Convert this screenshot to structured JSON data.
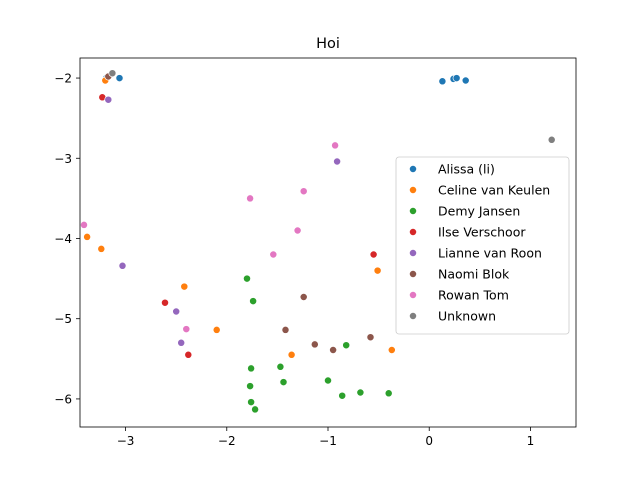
{
  "chart_data": {
    "type": "scatter",
    "title": "Hoi",
    "xlabel": "",
    "ylabel": "",
    "xlim": [
      -3.45,
      1.45
    ],
    "ylim": [
      -6.35,
      -1.75
    ],
    "xticks": [
      -3,
      -2,
      -1,
      0,
      1
    ],
    "yticks": [
      -2,
      -3,
      -4,
      -5,
      -6
    ],
    "xtick_labels": [
      "−3",
      "−2",
      "−1",
      "0",
      "1"
    ],
    "ytick_labels": [
      "−2",
      "−3",
      "−4",
      "−5",
      "−6"
    ],
    "grid": false,
    "legend_position": "center-right",
    "series": [
      {
        "name": "Alissa (li)",
        "color": "#1f77b4",
        "points": [
          [
            -3.19,
            -2.0
          ],
          [
            -3.06,
            -2.0
          ],
          [
            0.13,
            -2.04
          ],
          [
            0.24,
            -2.01
          ],
          [
            0.27,
            -2.0
          ],
          [
            0.36,
            -2.03
          ]
        ]
      },
      {
        "name": "Celine van Keulen",
        "color": "#ff7f0e",
        "points": [
          [
            -3.2,
            -2.03
          ],
          [
            -3.38,
            -3.98
          ],
          [
            -3.24,
            -4.13
          ],
          [
            -2.42,
            -4.6
          ],
          [
            -2.1,
            -5.14
          ],
          [
            -1.36,
            -5.45
          ],
          [
            -0.51,
            -4.4
          ],
          [
            -0.37,
            -5.39
          ]
        ]
      },
      {
        "name": "Demy Jansen",
        "color": "#2ca02c",
        "points": [
          [
            -1.8,
            -4.5
          ],
          [
            -1.74,
            -4.78
          ],
          [
            -1.76,
            -5.62
          ],
          [
            -1.77,
            -5.84
          ],
          [
            -1.76,
            -6.04
          ],
          [
            -1.72,
            -6.13
          ],
          [
            -1.47,
            -5.6
          ],
          [
            -1.44,
            -5.79
          ],
          [
            -1.0,
            -5.77
          ],
          [
            -0.82,
            -5.33
          ],
          [
            -0.86,
            -5.96
          ],
          [
            -0.68,
            -5.92
          ],
          [
            -0.4,
            -5.93
          ]
        ]
      },
      {
        "name": "Ilse Verschoor",
        "color": "#d62728",
        "points": [
          [
            -3.23,
            -2.24
          ],
          [
            -2.61,
            -4.8
          ],
          [
            -2.38,
            -5.45
          ],
          [
            -0.55,
            -4.2
          ]
        ]
      },
      {
        "name": "Lianne van Roon",
        "color": "#9467bd",
        "points": [
          [
            -3.17,
            -2.27
          ],
          [
            -3.03,
            -4.34
          ],
          [
            -2.5,
            -4.91
          ],
          [
            -2.45,
            -5.3
          ],
          [
            -0.91,
            -3.04
          ]
        ]
      },
      {
        "name": "Naomi Blok",
        "color": "#8c564b",
        "points": [
          [
            -3.17,
            -1.98
          ],
          [
            -1.24,
            -4.73
          ],
          [
            -1.42,
            -5.14
          ],
          [
            -1.13,
            -5.32
          ],
          [
            -0.95,
            -5.39
          ],
          [
            -0.58,
            -5.23
          ]
        ]
      },
      {
        "name": "Rowan Tom",
        "color": "#e377c2",
        "points": [
          [
            -3.41,
            -3.83
          ],
          [
            -2.4,
            -5.13
          ],
          [
            -1.77,
            -3.5
          ],
          [
            -1.54,
            -4.2
          ],
          [
            -1.3,
            -3.9
          ],
          [
            -1.24,
            -3.41
          ],
          [
            -0.93,
            -2.84
          ]
        ]
      },
      {
        "name": "Unknown",
        "color": "#7f7f7f",
        "points": [
          [
            -3.13,
            -1.94
          ],
          [
            1.21,
            -2.77
          ]
        ]
      }
    ]
  }
}
